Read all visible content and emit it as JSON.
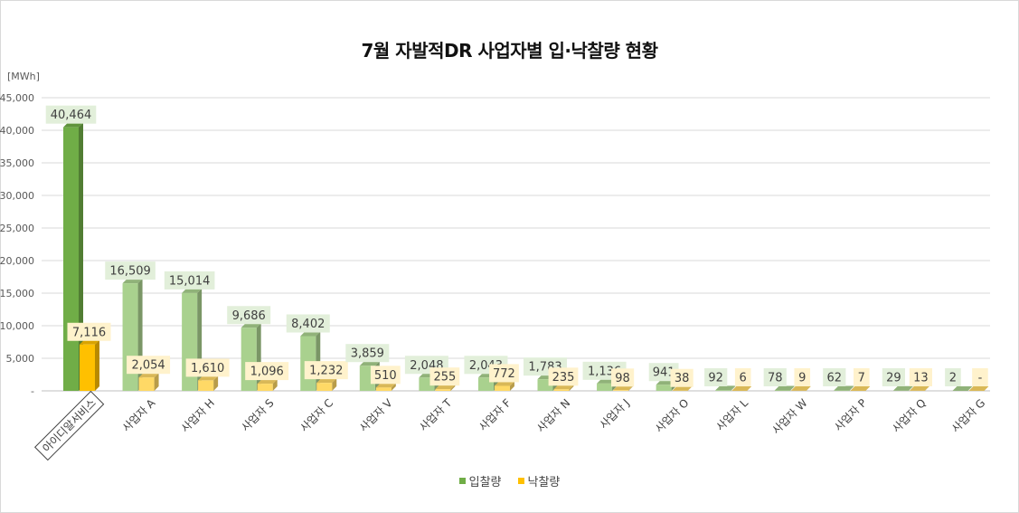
{
  "chart_data": {
    "type": "bar",
    "title": "7월 자발적DR 사업자별 입·낙찰량 현황",
    "unit_label": "[MWh]",
    "ylim": [
      0,
      45000
    ],
    "yticks": [
      "-",
      "5,000",
      "10,000",
      "15,000",
      "20,000",
      "25,000",
      "30,000",
      "35,000",
      "40,000",
      "45,000"
    ],
    "grid": true,
    "legend_position": "bottom",
    "categories": [
      "아이디알서비스",
      "사업자 A",
      "사업자 H",
      "사업자 S",
      "사업자 C",
      "사업자 V",
      "사업자 T",
      "사업자 F",
      "사업자 N",
      "사업자 J",
      "사업자 O",
      "사업자 L",
      "사업자 W",
      "사업자 P",
      "사업자 Q",
      "사업자 G"
    ],
    "highlight_category_index": 0,
    "series": [
      {
        "name": "입찰량",
        "values": [
          40464,
          16509,
          15014,
          9686,
          8402,
          3859,
          2048,
          2043,
          1783,
          1136,
          941,
          92,
          78,
          62,
          29,
          2
        ],
        "labels": [
          "40,464",
          "16,509",
          "15,014",
          "9,686",
          "8,402",
          "3,859",
          "2,048",
          "2,043",
          "1,783",
          "1,136",
          "941",
          "92",
          "78",
          "62",
          "29",
          "2"
        ],
        "color": "#a9d18e",
        "highlight_color": "#70ad47",
        "label_bg": "#e2efda"
      },
      {
        "name": "낙찰량",
        "values": [
          7116,
          2054,
          1610,
          1096,
          1232,
          510,
          255,
          772,
          235,
          98,
          38,
          6,
          9,
          7,
          13,
          0
        ],
        "labels": [
          "7,116",
          "2,054",
          "1,610",
          "1,096",
          "1,232",
          "510",
          "255",
          "772",
          "235",
          "98",
          "38",
          "6",
          "9",
          "7",
          "13",
          "-"
        ],
        "color": "#ffd966",
        "highlight_color": "#ffc000",
        "label_bg": "#fff2cc"
      }
    ]
  }
}
